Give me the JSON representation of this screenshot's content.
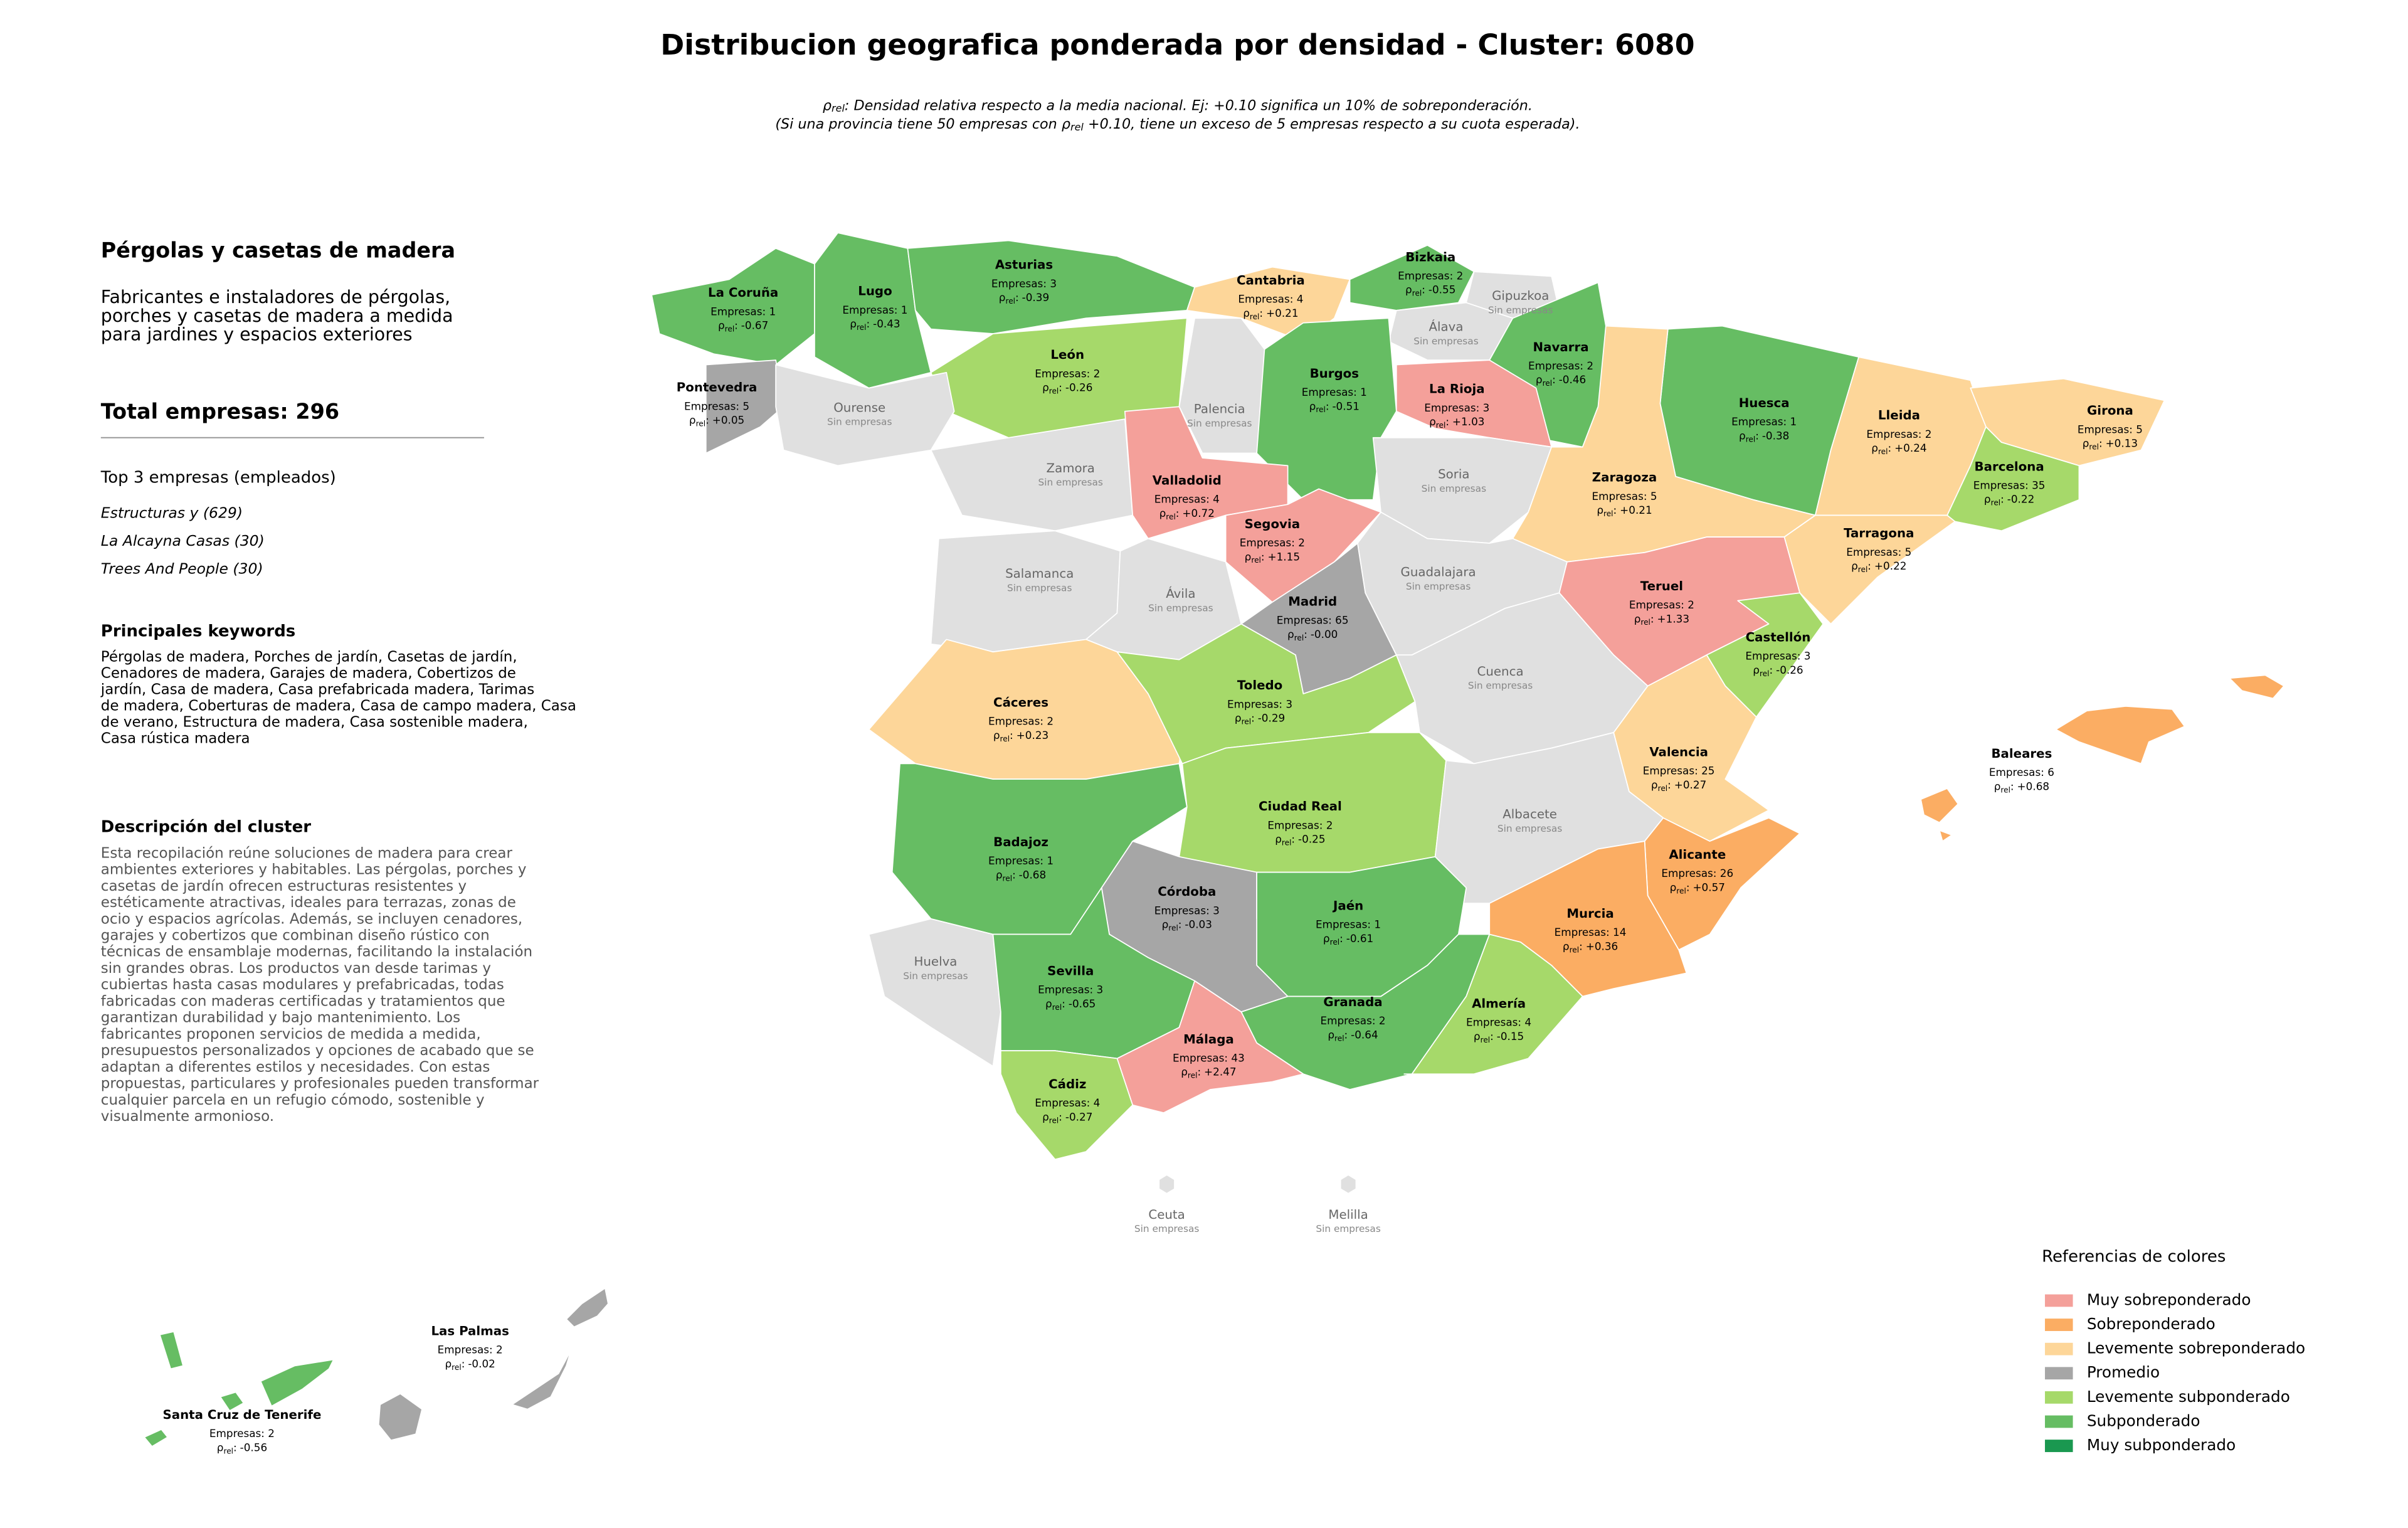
{
  "header": {
    "title": "Distribucion geografica ponderada por densidad - Cluster: 6080",
    "subtitle": [
      [
        "ρ",
        "rel",
        ": Densidad relativa respecto a la media nacional. Ej: +0.10 significa un 10% de sobreponderación."
      ],
      [
        "(Si una provincia tiene 50 empresas con ρ",
        "rel",
        " +0.10, tiene un exceso de 5 empresas respecto a su cuota esperada)."
      ]
    ]
  },
  "sidebar": {
    "heading": "Pérgolas y casetas de madera",
    "description": [
      "Fabricantes e instaladores de pérgolas,",
      "porches y casetas de madera a medida",
      "para jardines y espacios exteriores"
    ],
    "total": "Total empresas: 296",
    "top_heading": "Top 3 empresas (empleados)",
    "top_companies": [
      "Estructuras y (629)",
      "La Alcayna Casas (30)",
      "Trees And People (30)"
    ],
    "keywords_heading": "Principales keywords",
    "keywords": [
      "Pérgolas de madera, Porches de jardín, Casetas de jardín,",
      "Cenadores de madera, Garajes de madera, Cobertizos de",
      "jardín, Casa de madera, Casa prefabricada madera, Tarimas",
      "de madera, Coberturas de madera, Casa de campo madera, Casa",
      "de verano, Estructura de madera, Casa sostenible madera,",
      "Casa rústica madera"
    ],
    "cluster_heading": "Descripción del cluster",
    "cluster_description": [
      "Esta recopilación reúne soluciones de madera para crear",
      "ambientes exteriores y habitables. Las pérgolas, porches y",
      "casetas de jardín ofrecen estructuras resistentes y",
      "estéticamente atractivas, ideales para terrazas, zonas de",
      "ocio y espacios agrícolas. Además, se incluyen cenadores,",
      "garajes y cobertizos que combinan diseño rústico con",
      "técnicas de ensamblaje modernas, facilitando la instalación",
      "sin grandes obras. Los productos van desde tarimas y",
      "cubiertas hasta casas modulares y prefabricadas, todas",
      "fabricadas con maderas certificadas y tratamientos que",
      "garantizan durabilidad y bajo mantenimiento. Los",
      "fabricantes proponen servicios de medida a medida,",
      "presupuestos personalizados y opciones de acabado que se",
      "adaptan a diferentes estilos y necesidades. Con estas",
      "propuestas, particulares y profesionales pueden transformar",
      "cualquier parcela en un refugio cómodo, sostenible y",
      "visualmente armonioso."
    ]
  },
  "map": {
    "no_companies": "Sin empresas",
    "no_companies_color": "#e0e0e0",
    "rho_symbol": "ρ",
    "rho_sub": "rel",
    "rho_separator": ":",
    "provinces": [
      {
        "name": "La Coruña",
        "companies": "Empresas: 1",
        "rho": "-0.67",
        "level": 5
      },
      {
        "name": "Lugo",
        "companies": "Empresas: 1",
        "rho": "-0.43",
        "level": 5
      },
      {
        "name": "Asturias",
        "companies": "Empresas: 3",
        "rho": "-0.39",
        "level": 5
      },
      {
        "name": "Cantabria",
        "companies": "Empresas: 4",
        "rho": "+0.21",
        "level": 2
      },
      {
        "name": "Bizkaia",
        "companies": "Empresas: 2",
        "rho": "-0.55",
        "level": 5
      },
      {
        "name": "Gipuzkoa"
      },
      {
        "name": "Álava"
      },
      {
        "name": "Navarra",
        "companies": "Empresas: 2",
        "rho": "-0.46",
        "level": 5
      },
      {
        "name": "La Rioja",
        "companies": "Empresas: 3",
        "rho": "+1.03",
        "level": 0
      },
      {
        "name": "Burgos",
        "companies": "Empresas: 1",
        "rho": "-0.51",
        "level": 5
      },
      {
        "name": "Palencia"
      },
      {
        "name": "León",
        "companies": "Empresas: 2",
        "rho": "-0.26",
        "level": 4
      },
      {
        "name": "Pontevedra",
        "companies": "Empresas: 5",
        "rho": "+0.05",
        "level": 3
      },
      {
        "name": "Ourense"
      },
      {
        "name": "Zamora"
      },
      {
        "name": "Valladolid",
        "companies": "Empresas: 4",
        "rho": "+0.72",
        "level": 0
      },
      {
        "name": "Segovia",
        "companies": "Empresas: 2",
        "rho": "+1.15",
        "level": 0
      },
      {
        "name": "Soria"
      },
      {
        "name": "Huesca",
        "companies": "Empresas: 1",
        "rho": "-0.38",
        "level": 5
      },
      {
        "name": "Lleida",
        "companies": "Empresas: 2",
        "rho": "+0.24",
        "level": 2
      },
      {
        "name": "Girona",
        "companies": "Empresas: 5",
        "rho": "+0.13",
        "level": 2
      },
      {
        "name": "Barcelona",
        "companies": "Empresas: 35",
        "rho": "-0.22",
        "level": 4
      },
      {
        "name": "Zaragoza",
        "companies": "Empresas: 5",
        "rho": "+0.21",
        "level": 2
      },
      {
        "name": "Tarragona",
        "companies": "Empresas: 5",
        "rho": "+0.22",
        "level": 2
      },
      {
        "name": "Salamanca"
      },
      {
        "name": "Ávila"
      },
      {
        "name": "Madrid",
        "companies": "Empresas: 65",
        "rho": "-0.00",
        "level": 3
      },
      {
        "name": "Guadalajara"
      },
      {
        "name": "Teruel",
        "companies": "Empresas: 2",
        "rho": "+1.33",
        "level": 0
      },
      {
        "name": "Castellón",
        "companies": "Empresas: 3",
        "rho": "-0.26",
        "level": 4
      },
      {
        "name": "Cáceres",
        "companies": "Empresas: 2",
        "rho": "+0.23",
        "level": 2
      },
      {
        "name": "Toledo",
        "companies": "Empresas: 3",
        "rho": "-0.29",
        "level": 4
      },
      {
        "name": "Cuenca"
      },
      {
        "name": "Valencia",
        "companies": "Empresas: 25",
        "rho": "+0.27",
        "level": 2
      },
      {
        "name": "Baleares",
        "companies": "Empresas: 6",
        "rho": "+0.68",
        "level": 1
      },
      {
        "name": "Ciudad Real",
        "companies": "Empresas: 2",
        "rho": "-0.25",
        "level": 4
      },
      {
        "name": "Albacete"
      },
      {
        "name": "Badajoz",
        "companies": "Empresas: 1",
        "rho": "-0.68",
        "level": 5
      },
      {
        "name": "Alicante",
        "companies": "Empresas: 26",
        "rho": "+0.57",
        "level": 1
      },
      {
        "name": "Córdoba",
        "companies": "Empresas: 3",
        "rho": "-0.03",
        "level": 3
      },
      {
        "name": "Jaén",
        "companies": "Empresas: 1",
        "rho": "-0.61",
        "level": 5
      },
      {
        "name": "Murcia",
        "companies": "Empresas: 14",
        "rho": "+0.36",
        "level": 1
      },
      {
        "name": "Huelva"
      },
      {
        "name": "Sevilla",
        "companies": "Empresas: 3",
        "rho": "-0.65",
        "level": 5
      },
      {
        "name": "Granada",
        "companies": "Empresas: 2",
        "rho": "-0.64",
        "level": 5
      },
      {
        "name": "Almería",
        "companies": "Empresas: 4",
        "rho": "-0.15",
        "level": 4
      },
      {
        "name": "Málaga",
        "companies": "Empresas: 43",
        "rho": "+2.47",
        "level": 0
      },
      {
        "name": "Cádiz",
        "companies": "Empresas: 4",
        "rho": "-0.27",
        "level": 4
      },
      {
        "name": "Ceuta"
      },
      {
        "name": "Melilla"
      },
      {
        "name": "Las Palmas",
        "companies": "Empresas: 2",
        "rho": "-0.02",
        "level": 3
      },
      {
        "name": "Santa Cruz de Tenerife",
        "companies": "Empresas: 2",
        "rho": "-0.56",
        "level": 5
      }
    ]
  },
  "legend": {
    "title": "Referencias de colores",
    "items": [
      {
        "label": "Muy sobreponderado",
        "color": "#f4a09a"
      },
      {
        "label": "Sobreponderado",
        "color": "#fbad63"
      },
      {
        "label": "Levemente sobreponderado",
        "color": "#fdd699"
      },
      {
        "label": "Promedio",
        "color": "#a6a6a6"
      },
      {
        "label": "Levemente subponderado",
        "color": "#a6d96a"
      },
      {
        "label": "Subponderado",
        "color": "#66bd63"
      },
      {
        "label": "Muy subponderado",
        "color": "#1a9850"
      }
    ]
  }
}
